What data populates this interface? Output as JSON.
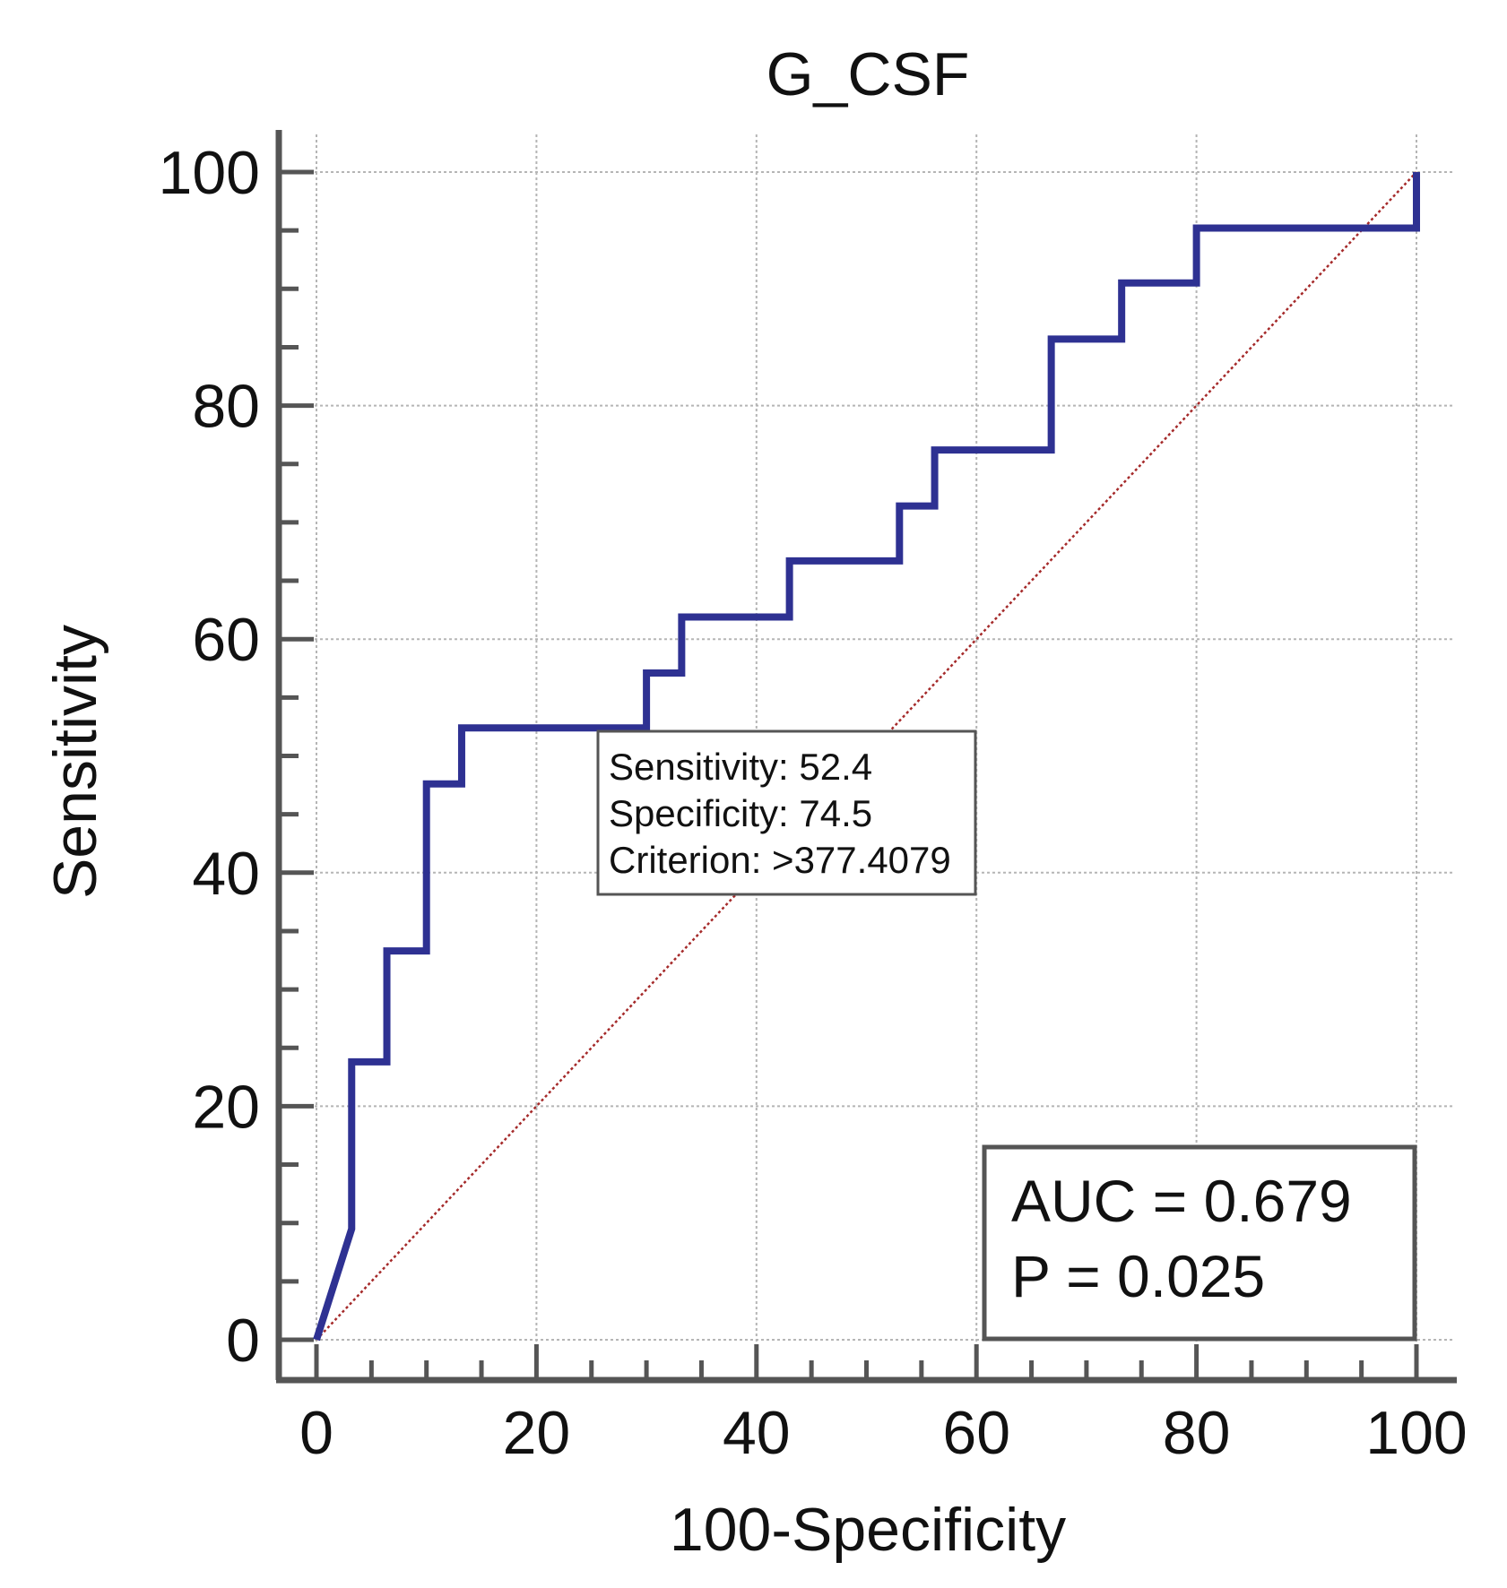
{
  "chart_data": {
    "type": "line",
    "title": "G_CSF",
    "xlabel": "100-Specificity",
    "ylabel": "Sensitivity",
    "xlim": [
      0,
      100
    ],
    "ylim": [
      0,
      100
    ],
    "x_ticks": [
      0,
      20,
      40,
      60,
      80,
      100
    ],
    "y_ticks": [
      0,
      20,
      40,
      60,
      80,
      100
    ],
    "x_tick_labels": [
      "0",
      "20",
      "40",
      "60",
      "80",
      "100"
    ],
    "y_tick_labels": [
      "0",
      "20",
      "40",
      "60",
      "80",
      "100"
    ],
    "grid": true,
    "series": [
      {
        "name": "ROC curve",
        "color": "#2e3192",
        "x": [
          0,
          3.2,
          3.2,
          6.4,
          6.4,
          10.0,
          10.0,
          13.2,
          13.2,
          30.0,
          30.0,
          33.2,
          33.2,
          43.0,
          43.0,
          53.0,
          53.0,
          56.2,
          56.2,
          66.8,
          66.8,
          73.2,
          73.2,
          80.0,
          80.0,
          100.0,
          100.0
        ],
        "y": [
          0,
          9.5,
          23.8,
          23.8,
          33.3,
          33.3,
          47.6,
          47.6,
          52.4,
          52.4,
          57.1,
          57.1,
          61.9,
          61.9,
          66.7,
          66.7,
          71.4,
          71.4,
          76.2,
          76.2,
          85.7,
          85.7,
          90.5,
          90.5,
          95.2,
          95.2,
          100.0
        ]
      },
      {
        "name": "reference diagonal",
        "color": "#a52a2a",
        "x": [
          0,
          100
        ],
        "y": [
          0,
          100
        ]
      }
    ],
    "annotation": {
      "lines": [
        "Sensitivity: 52.4",
        "Specificity: 74.5",
        "Criterion: >377.4079"
      ],
      "anchor": [
        30.0,
        52.4
      ]
    },
    "legend_box": {
      "lines": [
        "AUC = 0.679",
        "P = 0.025"
      ],
      "position": "bottom-right"
    }
  }
}
